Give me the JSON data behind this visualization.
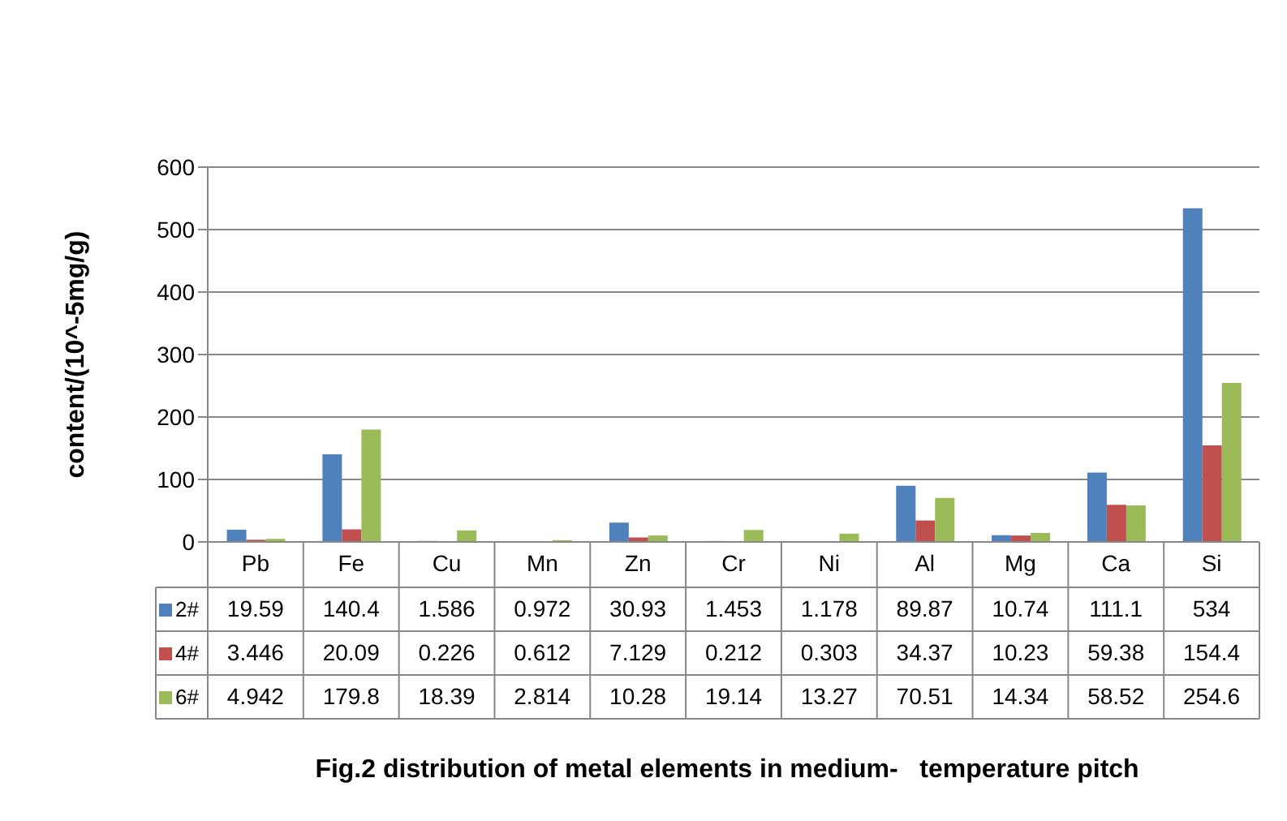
{
  "chart_data": {
    "type": "bar",
    "title": "Fig.2 distribution of metal elements in medium-   temperature pitch",
    "ylabel": "content/(10^-5mg/g)",
    "categories": [
      "Pb",
      "Fe",
      "Cu",
      "Mn",
      "Zn",
      "Cr",
      "Ni",
      "Al",
      "Mg",
      "Ca",
      "Si"
    ],
    "series": [
      {
        "name": "2#",
        "color": "#4f81bd",
        "values": [
          19.59,
          140.4,
          1.586,
          0.972,
          30.93,
          1.453,
          1.178,
          89.87,
          10.74,
          111.1,
          534
        ]
      },
      {
        "name": "4#",
        "color": "#c0504d",
        "values": [
          3.446,
          20.09,
          0.226,
          0.612,
          7.129,
          0.212,
          0.303,
          34.37,
          10.23,
          59.38,
          154.4
        ]
      },
      {
        "name": "6#",
        "color": "#9bbb59",
        "values": [
          4.942,
          179.8,
          18.39,
          2.814,
          10.28,
          19.14,
          13.27,
          70.51,
          14.34,
          58.52,
          254.6
        ]
      }
    ],
    "ylim": [
      0,
      600
    ],
    "yticks": [
      0,
      100,
      200,
      300,
      400,
      500,
      600
    ],
    "grid": "y",
    "legend": "bottom",
    "data_labels": true
  }
}
